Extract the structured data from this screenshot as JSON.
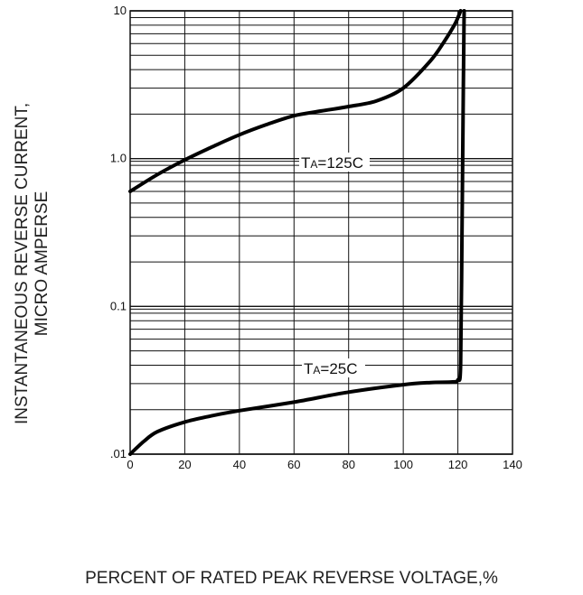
{
  "chart_data": {
    "type": "line",
    "title": "",
    "xlabel": "PERCENT OF RATED PEAK REVERSE VOLTAGE,%",
    "ylabel_lines": [
      "INSTANTANEOUS REVERSE CURRENT,",
      "MICRO AMPERSE"
    ],
    "xlim": [
      0,
      140
    ],
    "ylim": [
      0.01,
      10
    ],
    "yscale": "log",
    "grid": true,
    "x_ticks": [
      0,
      20,
      40,
      60,
      80,
      100,
      120,
      140
    ],
    "x_tick_labels": [
      "0",
      "20",
      "40",
      "60",
      "80",
      "100",
      "120",
      "140"
    ],
    "y_ticks": [
      0.01,
      0.1,
      1.0,
      10
    ],
    "y_tick_labels": [
      ".01",
      "0.1",
      "1.0",
      "10"
    ],
    "series": [
      {
        "name": "TA=125C",
        "label_main": "T",
        "label_sub": "A",
        "label_rest": "=125C",
        "x": [
          0,
          10,
          20,
          30,
          40,
          50,
          60,
          70,
          80,
          90,
          100,
          110,
          115,
          119,
          121
        ],
        "y": [
          0.6,
          0.78,
          0.98,
          1.2,
          1.45,
          1.7,
          1.95,
          2.1,
          2.25,
          2.45,
          3.0,
          4.6,
          6.2,
          8.2,
          10
        ]
      },
      {
        "name": "TA=25C",
        "label_main": "T",
        "label_sub": "A",
        "label_rest": "=25C",
        "x": [
          0,
          5,
          10,
          20,
          30,
          40,
          60,
          80,
          100,
          110,
          118,
          120,
          121,
          121.5,
          122,
          122.3
        ],
        "y": [
          0.01,
          0.0122,
          0.0142,
          0.0165,
          0.0182,
          0.0197,
          0.0225,
          0.0263,
          0.0295,
          0.0305,
          0.0308,
          0.0318,
          0.04,
          0.3,
          3.0,
          10
        ]
      }
    ]
  }
}
